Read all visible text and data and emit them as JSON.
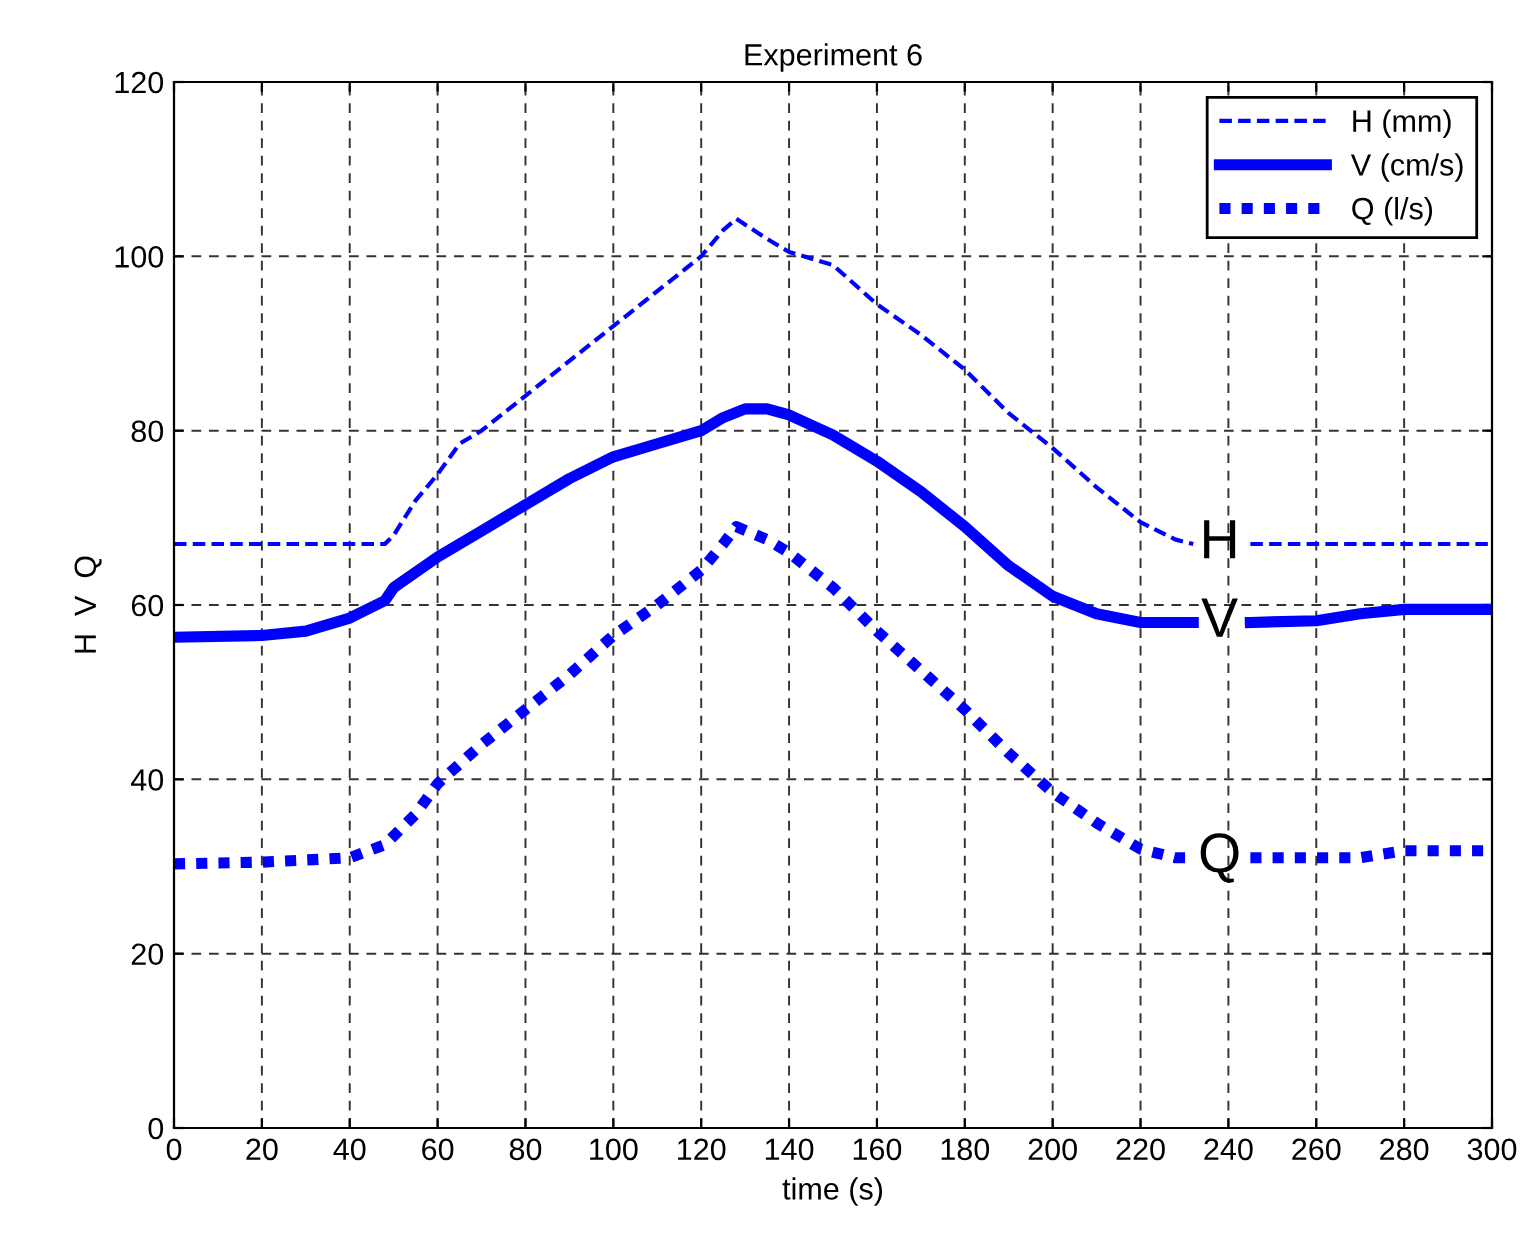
{
  "chart_data": {
    "type": "line",
    "title": "Experiment 6",
    "xlabel": "time (s)",
    "ylabel": "H  V  Q",
    "xlim": [
      0,
      300
    ],
    "xticks": [
      0,
      20,
      40,
      60,
      80,
      100,
      120,
      140,
      160,
      180,
      200,
      220,
      240,
      260,
      280,
      300
    ],
    "ylim": [
      0,
      120
    ],
    "yticks": [
      0,
      20,
      40,
      60,
      80,
      100,
      120
    ],
    "grid": true,
    "legend": "top right",
    "series": [
      {
        "name": "H (mm)",
        "color": "#0000ff",
        "line_style": "dashed",
        "x": [
          0,
          48,
          50,
          55,
          60,
          65,
          70,
          80,
          90,
          100,
          110,
          120,
          125,
          128,
          135,
          140,
          150,
          160,
          170,
          180,
          190,
          200,
          210,
          220,
          228,
          232,
          238,
          245,
          300
        ],
        "values": [
          67,
          67,
          68,
          72,
          75,
          78.5,
          80,
          84,
          88,
          92,
          96,
          100,
          103,
          104.3,
          102,
          100.5,
          99,
          94.5,
          91,
          87,
          82,
          78,
          73.5,
          69.5,
          67.5,
          67,
          null,
          67,
          67
        ]
      },
      {
        "name": "V (cm/s)",
        "color": "#0000ff",
        "line_style": "solid",
        "x": [
          0,
          20,
          30,
          40,
          48,
          50,
          60,
          70,
          80,
          90,
          100,
          110,
          120,
          125,
          130,
          135,
          140,
          150,
          160,
          170,
          180,
          190,
          200,
          210,
          220,
          232,
          238,
          245,
          260,
          270,
          280,
          300
        ],
        "values": [
          56.3,
          56.5,
          57,
          58.5,
          60.5,
          62,
          65.5,
          68.5,
          71.5,
          74.5,
          77,
          78.5,
          80,
          81.5,
          82.5,
          82.5,
          81.8,
          79.5,
          76.5,
          73,
          69,
          64.5,
          61,
          59,
          58,
          58,
          null,
          58,
          58.2,
          59,
          59.5,
          59.5
        ]
      },
      {
        "name": "Q (l/s)",
        "color": "#0000ff",
        "line_style": "dotted",
        "x": [
          0,
          20,
          40,
          48,
          55,
          60,
          70,
          80,
          90,
          100,
          110,
          120,
          125,
          128,
          135,
          140,
          150,
          160,
          170,
          180,
          190,
          200,
          210,
          220,
          228,
          232,
          238,
          245,
          270,
          280,
          300
        ],
        "values": [
          30.3,
          30.5,
          31,
          32.5,
          36,
          39.5,
          44,
          48,
          52,
          56.5,
          60,
          64,
          67,
          69,
          67.5,
          66,
          62,
          57,
          52.5,
          48,
          43,
          38.5,
          35,
          32,
          31,
          31,
          null,
          31,
          31,
          31.8,
          31.8
        ]
      }
    ],
    "annotations": [
      "H",
      "V",
      "Q"
    ]
  }
}
